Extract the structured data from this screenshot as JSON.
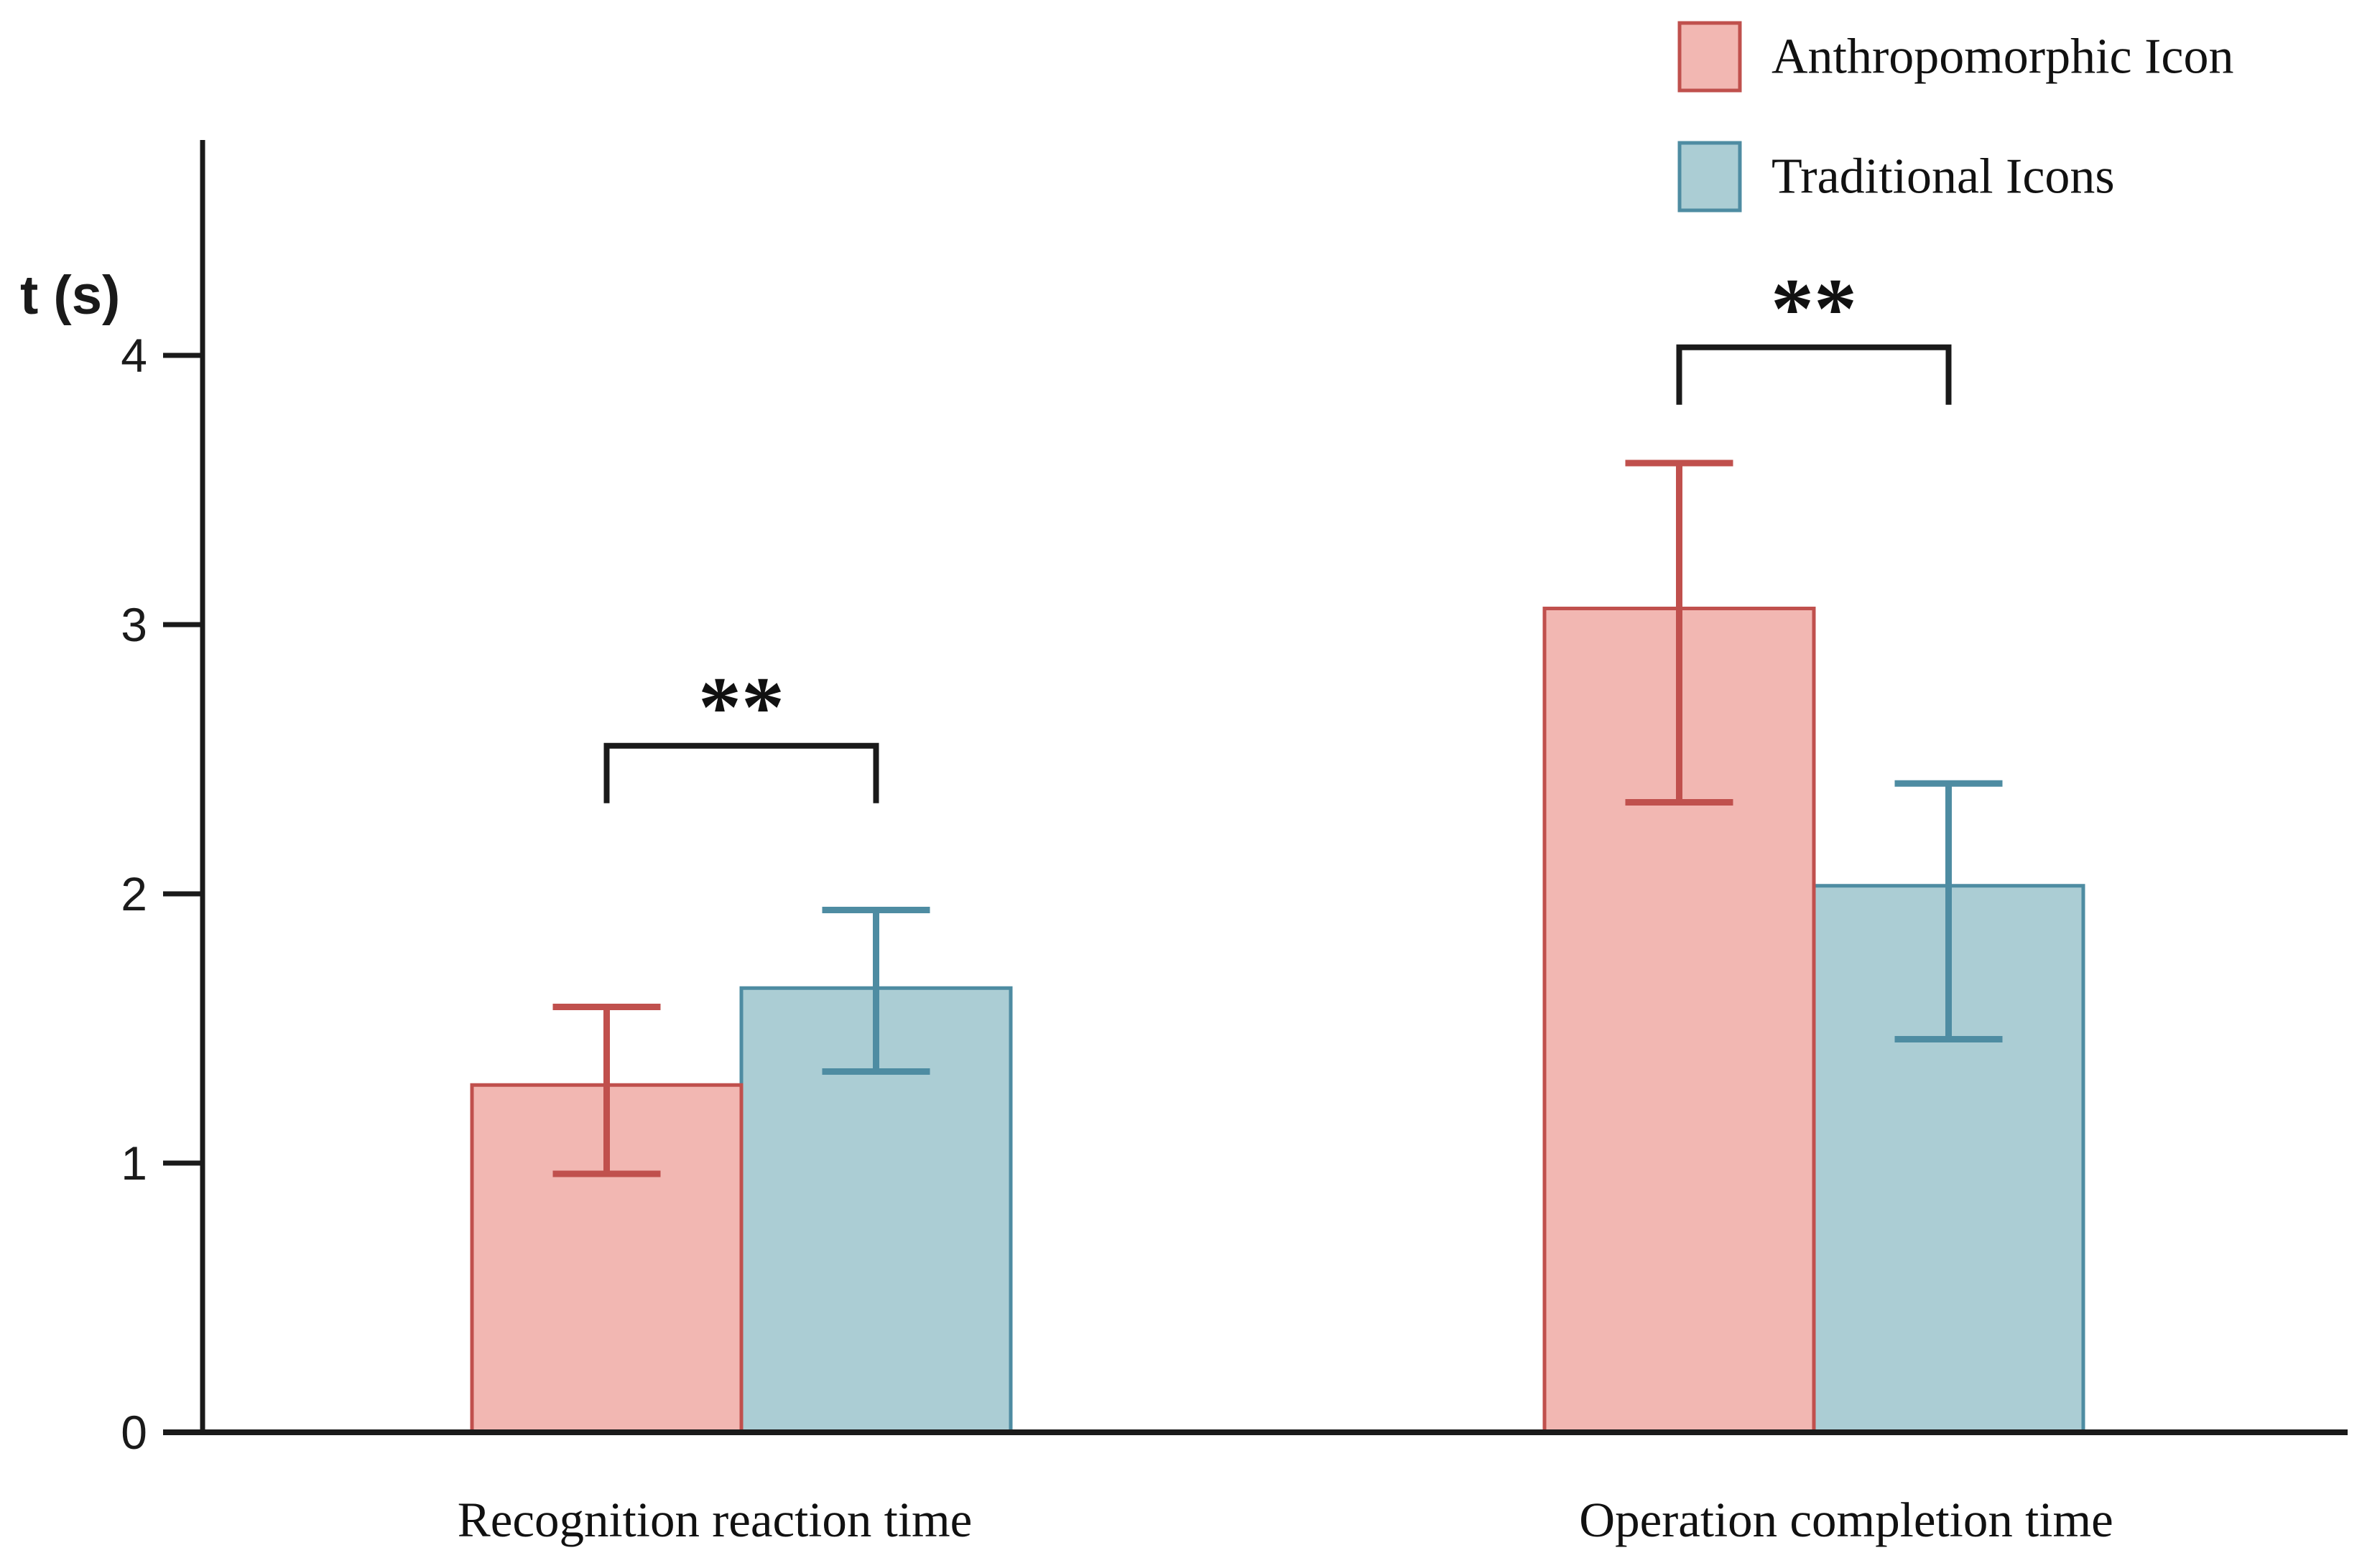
{
  "chart_data": {
    "type": "bar",
    "title": "",
    "ylabel": "t (s)",
    "xlabel": "",
    "categories": [
      "Recognition reaction time",
      "Operation completion time"
    ],
    "series": [
      {
        "name": "Anthropomorphic Icon",
        "key": "anthropomorphic-icon",
        "values": [
          1.29,
          3.06
        ],
        "error_low": [
          0.96,
          2.34
        ],
        "error_high": [
          1.58,
          3.6
        ],
        "fill": "#F2B7B2",
        "stroke": "#C0504D"
      },
      {
        "name": "Traditional Icons",
        "key": "traditional-icons",
        "values": [
          1.65,
          2.03
        ],
        "error_low": [
          1.34,
          1.46
        ],
        "error_high": [
          1.94,
          2.41
        ],
        "fill": "#ABCDD4",
        "stroke": "#4E8CA2"
      }
    ],
    "yticks": [
      0,
      1,
      2,
      3,
      4
    ],
    "ylim": [
      0,
      4.8
    ],
    "grid": false,
    "legend_position": "top-right",
    "error_bars": true,
    "significance": [
      {
        "group_index": 0,
        "label": "**",
        "bracket_y": 2.55
      },
      {
        "group_index": 1,
        "label": "**",
        "bracket_y": 4.03
      }
    ]
  }
}
